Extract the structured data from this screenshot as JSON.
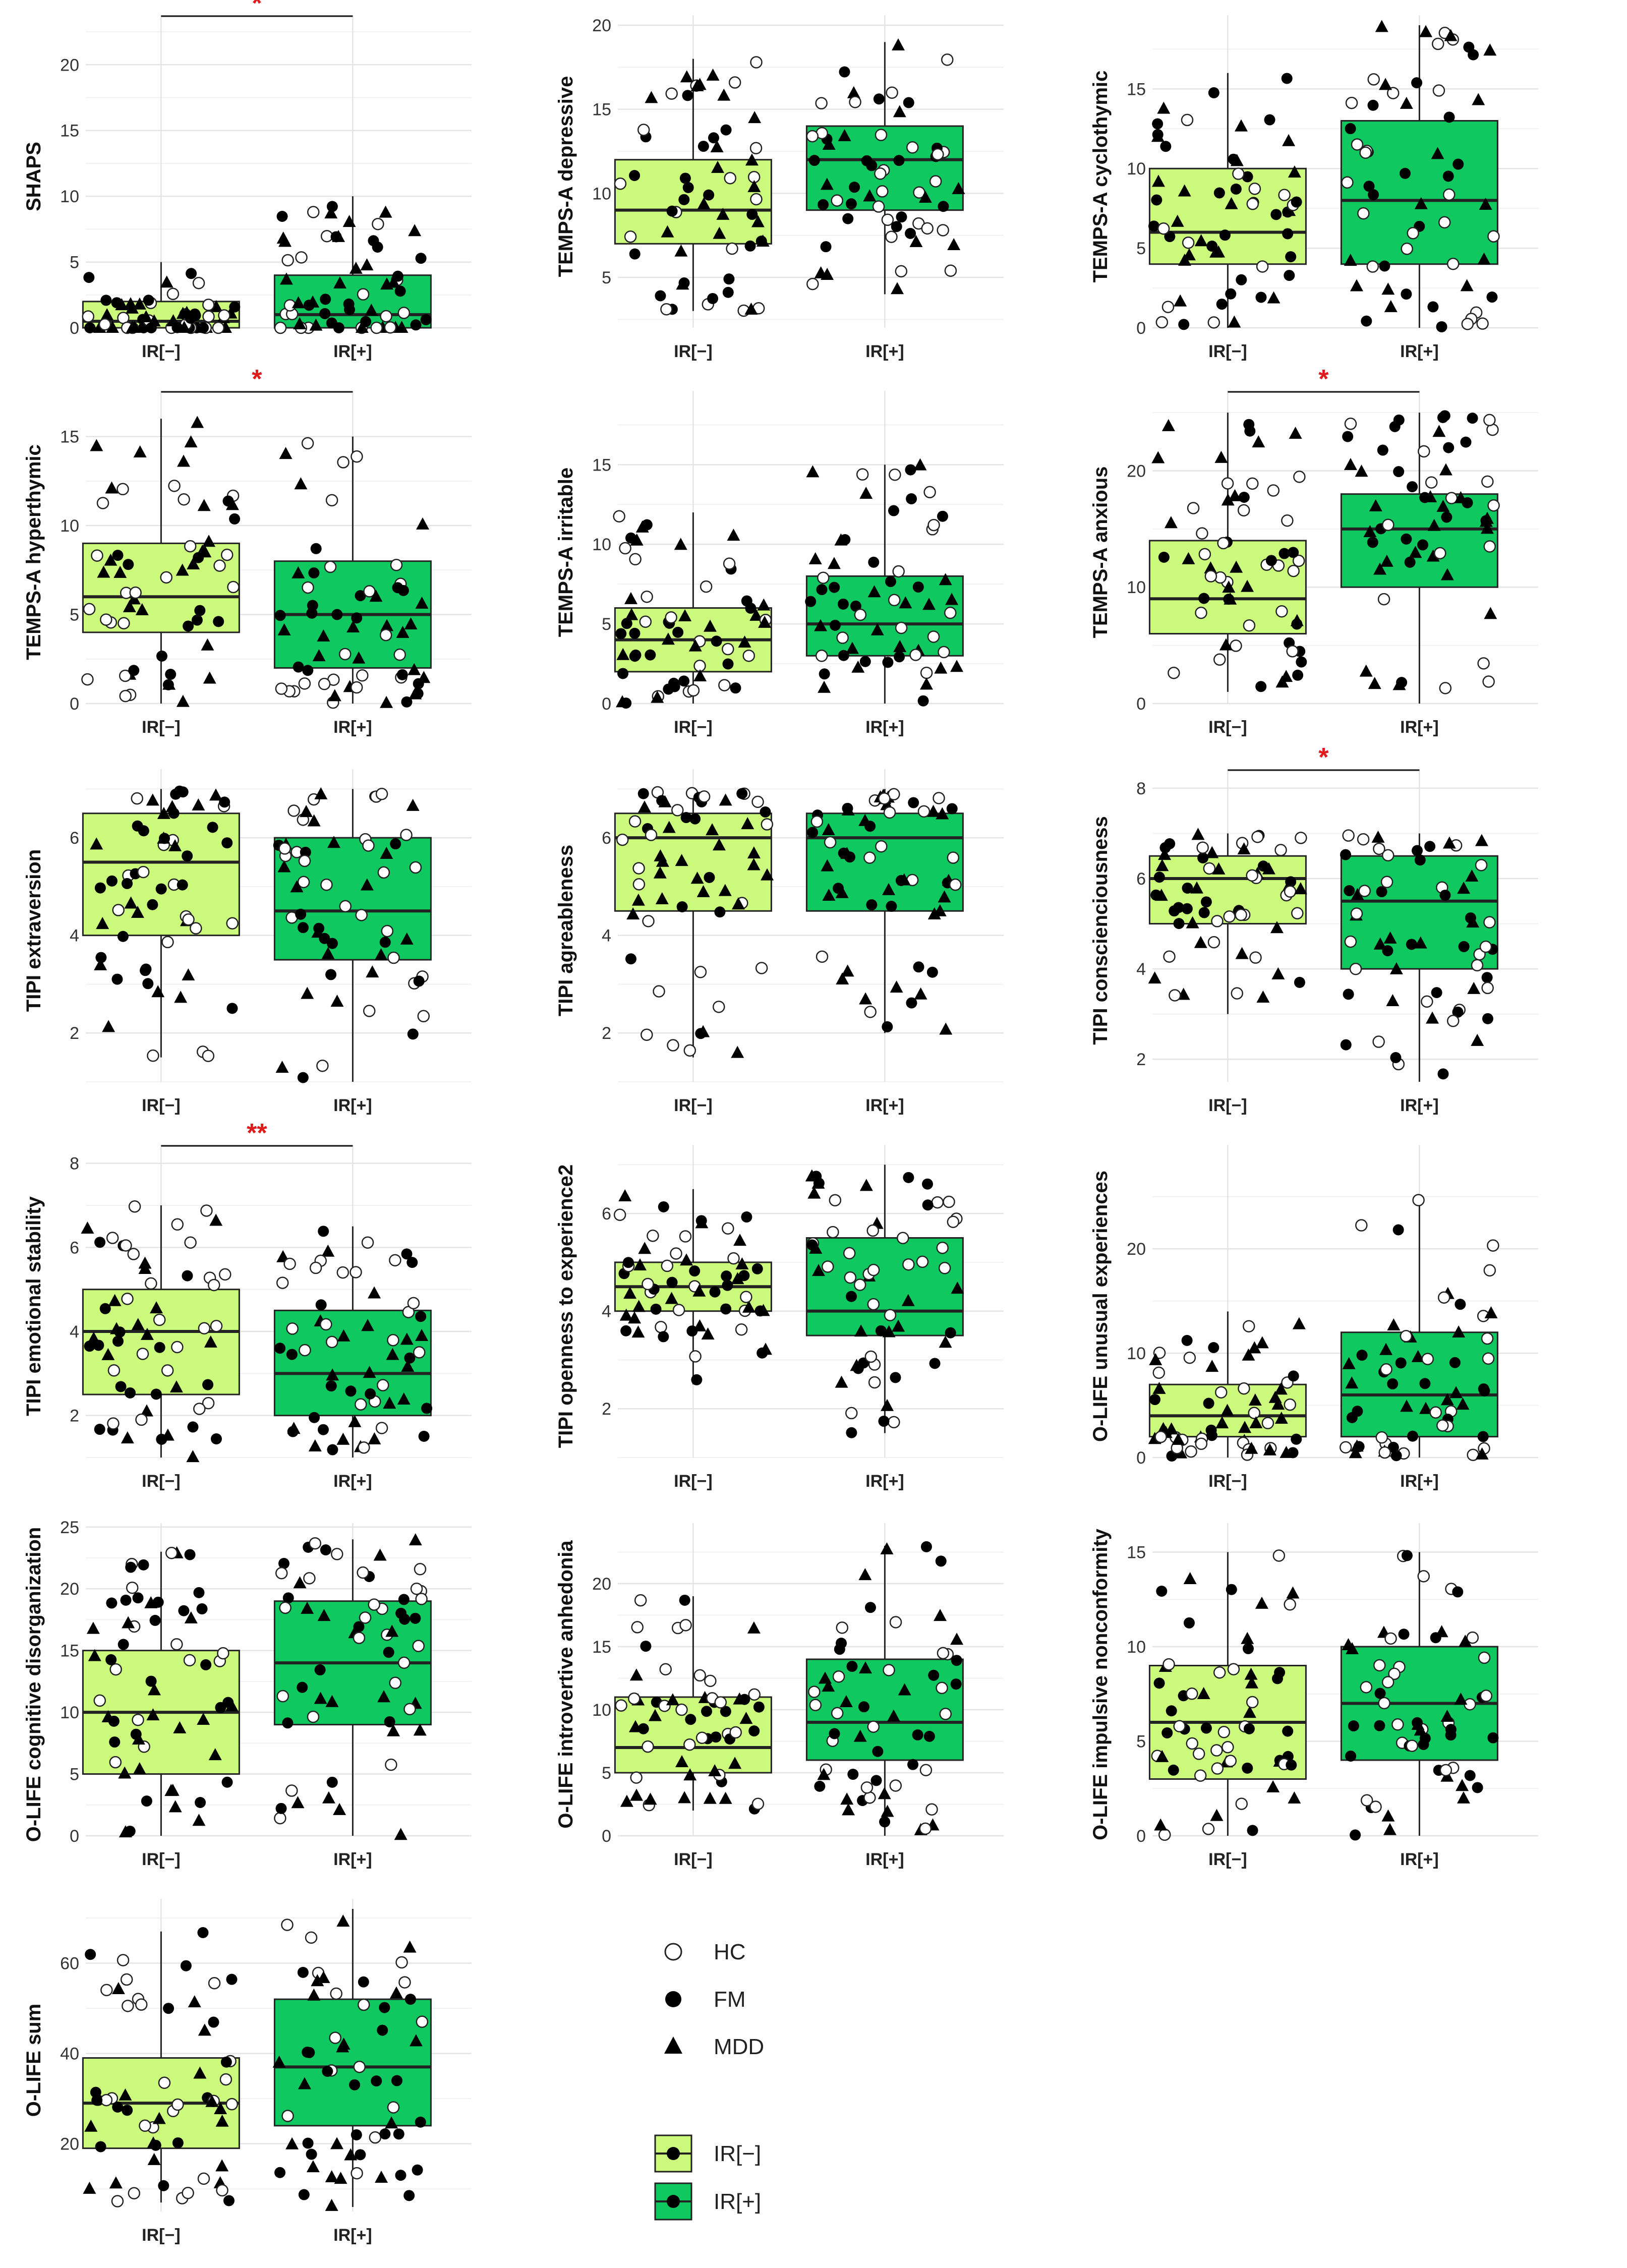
{
  "figure": {
    "groups": [
      "IR[−]",
      "IR[+]"
    ],
    "group_colors": {
      "IR[−]": "#ccfa7c",
      "IR[+]": "#10c860"
    },
    "legend": {
      "shape_items": [
        {
          "label": "HC",
          "shape": "open-circle"
        },
        {
          "label": "FM",
          "shape": "filled-circle"
        },
        {
          "label": "MDD",
          "shape": "filled-triangle"
        }
      ],
      "fill_items": [
        {
          "label": "IR[−]",
          "color": "#ccfa7c"
        },
        {
          "label": "IR[+]",
          "color": "#10c860"
        }
      ]
    }
  },
  "chart_data": [
    {
      "type": "box",
      "ylabel": "SHAPS",
      "ylim": [
        0,
        23
      ],
      "yticks": [
        0,
        5,
        10,
        15,
        20
      ],
      "categories": [
        "IR[−]",
        "IR[+]"
      ],
      "sig": "*",
      "boxes": [
        {
          "group": "IR[−]",
          "q1": 0,
          "median": 0.5,
          "q3": 2,
          "whisker_low": 0,
          "whisker_high": 5
        },
        {
          "group": "IR[+]",
          "q1": 0,
          "median": 1,
          "q3": 4,
          "whisker_low": 0,
          "whisker_high": 10
        }
      ]
    },
    {
      "type": "box",
      "ylabel": "TEMPS-A depressive",
      "ylim": [
        2,
        20
      ],
      "yticks": [
        5,
        10,
        15,
        20
      ],
      "categories": [
        "IR[−]",
        "IR[+]"
      ],
      "sig": "",
      "boxes": [
        {
          "group": "IR[−]",
          "q1": 7,
          "median": 9,
          "q3": 12,
          "whisker_low": 3,
          "whisker_high": 18
        },
        {
          "group": "IR[+]",
          "q1": 9,
          "median": 12,
          "q3": 14,
          "whisker_low": 4,
          "whisker_high": 19
        }
      ]
    },
    {
      "type": "box",
      "ylabel": "TEMPS-A cyclothymic",
      "ylim": [
        0,
        19
      ],
      "yticks": [
        0,
        5,
        10,
        15
      ],
      "categories": [
        "IR[−]",
        "IR[+]"
      ],
      "sig": "",
      "boxes": [
        {
          "group": "IR[−]",
          "q1": 4,
          "median": 6,
          "q3": 10,
          "whisker_low": 0,
          "whisker_high": 16
        },
        {
          "group": "IR[+]",
          "q1": 4,
          "median": 8,
          "q3": 13,
          "whisker_low": 0,
          "whisker_high": 19
        }
      ]
    },
    {
      "type": "box",
      "ylabel": "TEMPS-A hyperthymic",
      "ylim": [
        0,
        17
      ],
      "yticks": [
        0,
        5,
        10,
        15
      ],
      "categories": [
        "IR[−]",
        "IR[+]"
      ],
      "sig": "*",
      "boxes": [
        {
          "group": "IR[−]",
          "q1": 4,
          "median": 6,
          "q3": 9,
          "whisker_low": 0,
          "whisker_high": 16
        },
        {
          "group": "IR[+]",
          "q1": 2,
          "median": 5,
          "q3": 8,
          "whisker_low": 0,
          "whisker_high": 15
        }
      ]
    },
    {
      "type": "box",
      "ylabel": "TEMPS-A irritable",
      "ylim": [
        0,
        19
      ],
      "yticks": [
        0,
        5,
        10,
        15
      ],
      "categories": [
        "IR[−]",
        "IR[+]"
      ],
      "sig": "",
      "boxes": [
        {
          "group": "IR[−]",
          "q1": 2,
          "median": 4,
          "q3": 6,
          "whisker_low": 0,
          "whisker_high": 12
        },
        {
          "group": "IR[+]",
          "q1": 3,
          "median": 5,
          "q3": 8,
          "whisker_low": 0,
          "whisker_high": 15
        }
      ]
    },
    {
      "type": "box",
      "ylabel": "TEMPS-A anxious",
      "ylim": [
        0,
        26
      ],
      "yticks": [
        0,
        10,
        20
      ],
      "categories": [
        "IR[−]",
        "IR[+]"
      ],
      "sig": "*",
      "boxes": [
        {
          "group": "IR[−]",
          "q1": 6,
          "median": 9,
          "q3": 14,
          "whisker_low": 1,
          "whisker_high": 25
        },
        {
          "group": "IR[+]",
          "q1": 10,
          "median": 15,
          "q3": 18,
          "whisker_low": 0,
          "whisker_high": 25
        }
      ]
    },
    {
      "type": "box",
      "ylabel": "TIPI extraversion",
      "ylim": [
        1,
        7.2
      ],
      "yticks": [
        2,
        4,
        6
      ],
      "categories": [
        "IR[−]",
        "IR[+]"
      ],
      "sig": "",
      "boxes": [
        {
          "group": "IR[−]",
          "q1": 4,
          "median": 5.5,
          "q3": 6.5,
          "whisker_low": 1.5,
          "whisker_high": 7
        },
        {
          "group": "IR[+]",
          "q1": 3.5,
          "median": 4.5,
          "q3": 6,
          "whisker_low": 1,
          "whisker_high": 7
        }
      ]
    },
    {
      "type": "box",
      "ylabel": "TIPI agreableness",
      "ylim": [
        1,
        7.2
      ],
      "yticks": [
        2,
        4,
        6
      ],
      "categories": [
        "IR[−]",
        "IR[+]"
      ],
      "sig": "",
      "boxes": [
        {
          "group": "IR[−]",
          "q1": 4.5,
          "median": 6,
          "q3": 6.5,
          "whisker_low": 1.5,
          "whisker_high": 7
        },
        {
          "group": "IR[+]",
          "q1": 4.5,
          "median": 6,
          "q3": 6.5,
          "whisker_low": 2,
          "whisker_high": 7
        }
      ]
    },
    {
      "type": "box",
      "ylabel": "TIPI conscienciousness",
      "ylim": [
        1.5,
        8.2
      ],
      "yticks": [
        2,
        4,
        6,
        8
      ],
      "categories": [
        "IR[−]",
        "IR[+]"
      ],
      "sig": "*",
      "boxes": [
        {
          "group": "IR[−]",
          "q1": 5,
          "median": 6,
          "q3": 6.5,
          "whisker_low": 3,
          "whisker_high": 7
        },
        {
          "group": "IR[+]",
          "q1": 4,
          "median": 5.5,
          "q3": 6.5,
          "whisker_low": 1.5,
          "whisker_high": 7
        }
      ]
    },
    {
      "type": "box",
      "ylabel": "TIPI emotional stability",
      "ylim": [
        1,
        8.2
      ],
      "yticks": [
        2,
        4,
        6,
        8
      ],
      "categories": [
        "IR[−]",
        "IR[+]"
      ],
      "sig": "**",
      "boxes": [
        {
          "group": "IR[−]",
          "q1": 2.5,
          "median": 4,
          "q3": 5,
          "whisker_low": 1,
          "whisker_high": 7
        },
        {
          "group": "IR[+]",
          "q1": 2,
          "median": 3,
          "q3": 4.5,
          "whisker_low": 1,
          "whisker_high": 6.5
        }
      ]
    },
    {
      "type": "box",
      "ylabel": "TIPI openness to experience2",
      "ylim": [
        1,
        7.2
      ],
      "yticks": [
        2,
        4,
        6
      ],
      "categories": [
        "IR[−]",
        "IR[+]"
      ],
      "sig": "",
      "boxes": [
        {
          "group": "IR[−]",
          "q1": 4,
          "median": 4.5,
          "q3": 5,
          "whisker_low": 2.5,
          "whisker_high": 6.5
        },
        {
          "group": "IR[+]",
          "q1": 3.5,
          "median": 4,
          "q3": 5.5,
          "whisker_low": 1.5,
          "whisker_high": 7
        }
      ]
    },
    {
      "type": "box",
      "ylabel": "O-LIFE unusual experiences",
      "ylim": [
        0,
        29
      ],
      "yticks": [
        0,
        10,
        20
      ],
      "categories": [
        "IR[−]",
        "IR[+]"
      ],
      "sig": "",
      "boxes": [
        {
          "group": "IR[−]",
          "q1": 2,
          "median": 4,
          "q3": 7,
          "whisker_low": 0,
          "whisker_high": 14
        },
        {
          "group": "IR[+]",
          "q1": 2,
          "median": 6,
          "q3": 12,
          "whisker_low": 0,
          "whisker_high": 25
        }
      ]
    },
    {
      "type": "box",
      "ylabel": "O-LIFE cognitive disorganization",
      "ylim": [
        0,
        24.5
      ],
      "yticks": [
        0,
        5,
        10,
        15,
        20,
        25
      ],
      "categories": [
        "IR[−]",
        "IR[+]"
      ],
      "sig": "",
      "boxes": [
        {
          "group": "IR[−]",
          "q1": 5,
          "median": 10,
          "q3": 15,
          "whisker_low": 0,
          "whisker_high": 23
        },
        {
          "group": "IR[+]",
          "q1": 9,
          "median": 14,
          "q3": 19,
          "whisker_low": 0,
          "whisker_high": 24
        }
      ]
    },
    {
      "type": "box",
      "ylabel": "O-LIFE introvertive anhedonia",
      "ylim": [
        0,
        24
      ],
      "yticks": [
        0,
        5,
        10,
        15,
        20
      ],
      "categories": [
        "IR[−]",
        "IR[+]"
      ],
      "sig": "",
      "boxes": [
        {
          "group": "IR[−]",
          "q1": 5,
          "median": 7,
          "q3": 11,
          "whisker_low": 2,
          "whisker_high": 19
        },
        {
          "group": "IR[+]",
          "q1": 6,
          "median": 9,
          "q3": 14,
          "whisker_low": 0,
          "whisker_high": 23
        }
      ]
    },
    {
      "type": "box",
      "ylabel": "O-LIFE impulsive nonconformity",
      "ylim": [
        0,
        16
      ],
      "yticks": [
        0,
        5,
        10,
        15
      ],
      "categories": [
        "IR[−]",
        "IR[+]"
      ],
      "sig": "",
      "boxes": [
        {
          "group": "IR[−]",
          "q1": 3,
          "median": 6,
          "q3": 9,
          "whisker_low": 0,
          "whisker_high": 15
        },
        {
          "group": "IR[+]",
          "q1": 4,
          "median": 7,
          "q3": 10,
          "whisker_low": 0,
          "whisker_high": 15
        }
      ]
    },
    {
      "type": "box",
      "ylabel": "O-LIFE sum",
      "ylim": [
        5,
        72
      ],
      "yticks": [
        20,
        40,
        60
      ],
      "categories": [
        "IR[−]",
        "IR[+]"
      ],
      "sig": "",
      "boxes": [
        {
          "group": "IR[−]",
          "q1": 19,
          "median": 29,
          "q3": 39,
          "whisker_low": 7,
          "whisker_high": 67
        },
        {
          "group": "IR[+]",
          "q1": 24,
          "median": 37,
          "q3": 52,
          "whisker_low": 6,
          "whisker_high": 72
        }
      ]
    }
  ]
}
